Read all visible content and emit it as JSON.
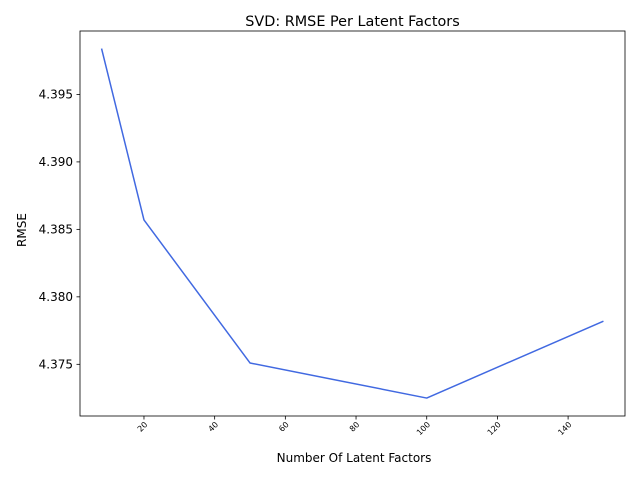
{
  "chart_data": {
    "type": "line",
    "title": "SVD: RMSE Per Latent Factors",
    "xlabel": "Number Of Latent Factors",
    "ylabel": "RMSE",
    "x": [
      8,
      20,
      50,
      100,
      150
    ],
    "series": [
      {
        "values": [
          4.3984,
          4.3857,
          4.3751,
          4.3725,
          4.3782
        ],
        "color": "#4169e1"
      }
    ],
    "xlim": [
      1.9,
      156.1
    ],
    "ylim": [
      4.37117,
      4.3997
    ],
    "xticks": [
      20,
      40,
      60,
      80,
      100,
      120,
      140
    ],
    "xtick_labels": [
      "20",
      "40",
      "60",
      "80",
      "100",
      "120",
      "140"
    ],
    "yticks": [
      4.375,
      4.38,
      4.385,
      4.39,
      4.395
    ],
    "ytick_labels": [
      "4.375",
      "4.380",
      "4.385",
      "4.390",
      "4.395"
    ],
    "grid": false,
    "legend": false
  }
}
